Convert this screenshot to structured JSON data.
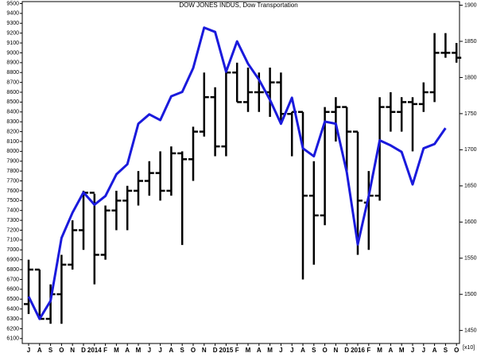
{
  "chart_data": {
    "type": "ohlc",
    "title": "DOW JONES INDUS, Dow Transportation",
    "y2_label": "[x10]",
    "categories": [
      "J",
      "A",
      "S",
      "O",
      "N",
      "D",
      "2014",
      "F",
      "M",
      "A",
      "M",
      "J",
      "J",
      "A",
      "S",
      "O",
      "N",
      "D",
      "2015",
      "F",
      "M",
      "A",
      "M",
      "J",
      "J",
      "A",
      "S",
      "O",
      "N",
      "D",
      "2016",
      "F",
      "M",
      "A",
      "M",
      "J",
      "J",
      "A",
      "S",
      "O"
    ],
    "ylim": [
      6050,
      9520
    ],
    "yticks": [
      6100,
      6200,
      6300,
      6400,
      6500,
      6600,
      6700,
      6800,
      6900,
      7000,
      7100,
      7200,
      7300,
      7400,
      7500,
      7600,
      7700,
      7800,
      7900,
      8000,
      8100,
      8200,
      8300,
      8400,
      8500,
      8600,
      8700,
      8800,
      8900,
      9000,
      9100,
      9200,
      9300,
      9400,
      9500
    ],
    "y2lim": [
      1432,
      1905
    ],
    "y2ticks": [
      1450,
      1500,
      1550,
      1600,
      1650,
      1700,
      1750,
      1800,
      1850,
      1900
    ],
    "series": [
      {
        "color": "#000000",
        "open": [
          6450,
          6800,
          6300,
          6550,
          6850,
          7200,
          7580,
          6950,
          7400,
          7500,
          7600,
          7700,
          7780,
          7600,
          7980,
          7920,
          8200,
          8550,
          8050,
          8800,
          8500,
          8600,
          8600,
          8700,
          8380,
          8400,
          7550,
          7350,
          8400,
          8450,
          8200,
          7480,
          7550,
          8450,
          8400,
          8500,
          8480,
          8600,
          9000,
          9000
        ],
        "high": [
          6900,
          6800,
          6650,
          6950,
          7300,
          7600,
          7570,
          7450,
          7600,
          7650,
          7800,
          7900,
          8000,
          8050,
          8000,
          8250,
          8800,
          8650,
          8850,
          8900,
          8850,
          8800,
          8850,
          8800,
          8400,
          8400,
          7900,
          8450,
          8550,
          8450,
          8200,
          7800,
          8550,
          8600,
          8550,
          8550,
          8700,
          9200,
          9200,
          9100
        ],
        "low": [
          6350,
          6300,
          6250,
          6250,
          6800,
          7000,
          6650,
          6900,
          7200,
          7200,
          7450,
          7550,
          7500,
          7550,
          7050,
          7700,
          8150,
          7950,
          7950,
          8500,
          8400,
          8400,
          8350,
          8300,
          7950,
          6700,
          6850,
          7250,
          8100,
          7800,
          6950,
          7000,
          7500,
          8200,
          8200,
          8000,
          8400,
          8500,
          8950,
          8900
        ],
        "close": [
          6800,
          6300,
          6550,
          6850,
          7200,
          7580,
          6950,
          7400,
          7500,
          7600,
          7700,
          7780,
          7600,
          7980,
          7920,
          8200,
          8550,
          8050,
          8800,
          8500,
          8600,
          8600,
          8700,
          8380,
          8400,
          7550,
          7350,
          8400,
          8450,
          8200,
          7500,
          7550,
          8450,
          8400,
          8500,
          8480,
          8600,
          9000,
          9000,
          8950
        ]
      },
      {
        "color": "#1a1adc",
        "axis": "y2",
        "values": [
          1497,
          1466,
          1491,
          1578,
          1613,
          1641,
          1624,
          1636,
          1666,
          1680,
          1736,
          1749,
          1741,
          1774,
          1780,
          1813,
          1869,
          1863,
          1808,
          1850,
          1819,
          1797,
          1769,
          1736,
          1772,
          1702,
          1691,
          1739,
          1736,
          1669,
          1569,
          1636,
          1713,
          1706,
          1697,
          1652,
          1702,
          1708,
          1730,
          null
        ]
      }
    ]
  }
}
